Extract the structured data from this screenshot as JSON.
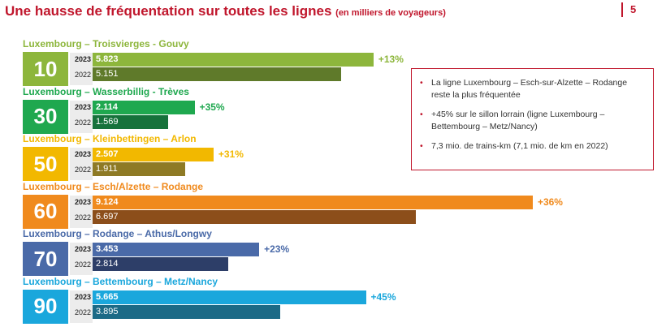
{
  "header": {
    "title": "Une hausse de fréquentation sur toutes les lignes",
    "subtitle": "(en milliers de voyageurs)",
    "page_number": "5"
  },
  "chart_data": {
    "type": "bar",
    "orientation": "horizontal",
    "title": "Une hausse de fréquentation sur toutes les lignes",
    "unit": "milliers de voyageurs",
    "series_names": [
      "2023",
      "2022"
    ],
    "lines": [
      {
        "number": "10",
        "name": "Luxembourg – Troisvierges - Gouvy",
        "color": "#8db63c",
        "color_dark": "#5f7a2a",
        "v2023": 5.823,
        "v2022": 5.151,
        "label2023": "5.823",
        "label2022": "5.151",
        "growth": "+13%"
      },
      {
        "number": "30",
        "name": "Luxembourg – Wasserbillig - Trèves",
        "color": "#1fa84f",
        "color_dark": "#16723b",
        "v2023": 2.114,
        "v2022": 1.569,
        "label2023": "2.114",
        "label2022": "1.569",
        "growth": "+35%"
      },
      {
        "number": "50",
        "name": "Luxembourg – Kleinbettingen – Arlon",
        "color": "#f2b800",
        "color_dark": "#8e7a25",
        "v2023": 2.507,
        "v2022": 1.911,
        "label2023": "2.507",
        "label2022": "1.911",
        "growth": "+31%"
      },
      {
        "number": "60",
        "name": "Luxembourg – Esch/Alzette – Rodange",
        "color": "#f08a1d",
        "color_dark": "#8c4e1a",
        "v2023": 9.124,
        "v2022": 6.697,
        "label2023": "9.124",
        "label2022": "6.697",
        "growth": "+36%"
      },
      {
        "number": "70",
        "name": "Luxembourg – Rodange – Athus/Longwy",
        "color": "#4a6aa8",
        "color_dark": "#2d3e68",
        "v2023": 3.453,
        "v2022": 2.814,
        "label2023": "3.453",
        "label2022": "2.814",
        "growth": "+23%"
      },
      {
        "number": "90",
        "name": "Luxembourg – Bettembourg – Metz/Nancy",
        "color": "#1aa7dc",
        "color_dark": "#1c6a86",
        "v2023": 5.665,
        "v2022": 3.895,
        "label2023": "5.665",
        "label2022": "3.895",
        "growth": "+45%"
      }
    ]
  },
  "notes": [
    "La ligne Luxembourg – Esch-sur-Alzette – Rodange reste la plus fréquentée",
    "+45% sur le sillon lorrain (ligne Luxembourg – Bettembourg – Metz/Nancy)",
    "7,3 mio. de trains-km  (7,1 mio. de km en 2022)"
  ],
  "colors": {
    "accent": "#c0162c",
    "year_bg": "#ececec"
  }
}
